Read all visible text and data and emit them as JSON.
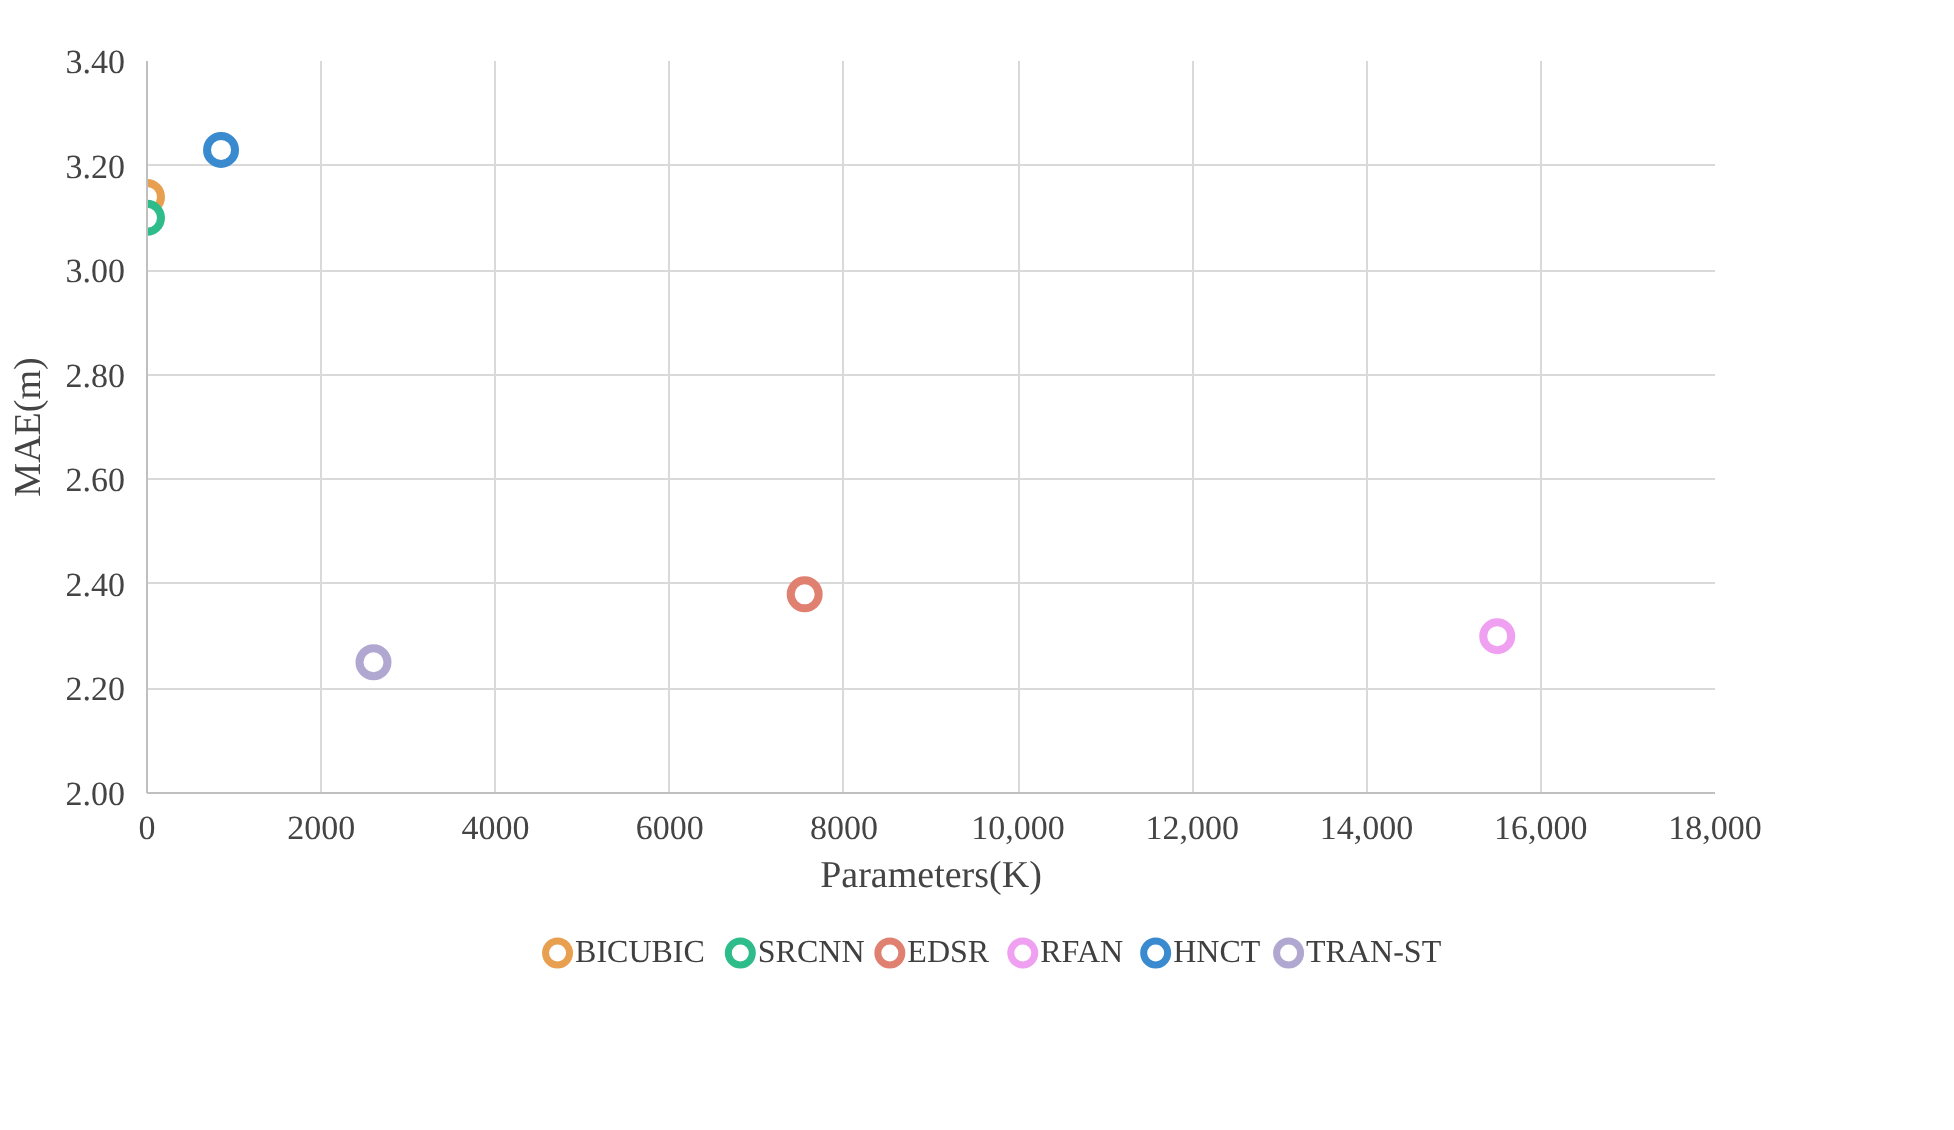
{
  "chart_data": {
    "type": "scatter",
    "xlabel": "Parameters(K)",
    "ylabel": "MAE(m)",
    "xlim": [
      0,
      18000
    ],
    "ylim": [
      2.0,
      3.4
    ],
    "xticks": [
      0,
      2000,
      4000,
      6000,
      8000,
      {
        "value": 10000,
        "label": "10,000"
      },
      {
        "value": 12000,
        "label": "12,000"
      },
      {
        "value": 14000,
        "label": "14,000"
      },
      {
        "value": 16000,
        "label": "16,000"
      },
      {
        "value": 18000,
        "label": "18,000"
      }
    ],
    "yticks": [
      {
        "value": 2.0,
        "label": "2.00"
      },
      {
        "value": 2.2,
        "label": "2.20"
      },
      {
        "value": 2.4,
        "label": "2.40"
      },
      {
        "value": 2.6,
        "label": "2.60"
      },
      {
        "value": 2.8,
        "label": "2.80"
      },
      {
        "value": 3.0,
        "label": "3.00"
      },
      {
        "value": 3.2,
        "label": "3.20"
      },
      {
        "value": 3.4,
        "label": "3.40"
      }
    ],
    "grid": true,
    "legend": "bottom",
    "marker": "circle",
    "series": [
      {
        "name": "BICUBIC",
        "color": "#e8a050",
        "x": [
          0
        ],
        "values": [
          3.14
        ]
      },
      {
        "name": "SRCNN",
        "color": "#2ebc8a",
        "x": [
          0
        ],
        "values": [
          3.1
        ]
      },
      {
        "name": "EDSR",
        "color": "#e08070",
        "x": [
          7550
        ],
        "values": [
          2.38
        ]
      },
      {
        "name": "RFAN",
        "color": "#f0a0f0",
        "x": [
          15500
        ],
        "values": [
          2.3
        ]
      },
      {
        "name": "HNCT",
        "color": "#3a8ad0",
        "x": [
          850
        ],
        "values": [
          3.23
        ]
      },
      {
        "name": "TRAN-ST",
        "color": "#b0a8d0",
        "x": [
          2600
        ],
        "values": [
          2.25
        ]
      }
    ]
  }
}
